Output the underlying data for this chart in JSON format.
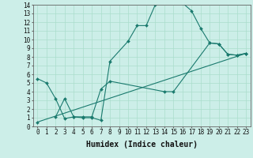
{
  "xlabel": "Humidex (Indice chaleur)",
  "bg_color": "#cceee8",
  "line_color": "#1a7a6e",
  "xlim": [
    -0.5,
    23.5
  ],
  "ylim": [
    0,
    14
  ],
  "xtick_vals": [
    0,
    1,
    2,
    3,
    4,
    5,
    6,
    7,
    8,
    9,
    10,
    11,
    12,
    13,
    14,
    15,
    16,
    17,
    18,
    19,
    20,
    21,
    22,
    23
  ],
  "ytick_vals": [
    0,
    1,
    2,
    3,
    4,
    5,
    6,
    7,
    8,
    9,
    10,
    11,
    12,
    13,
    14
  ],
  "line1_x": [
    0,
    1,
    2,
    3,
    4,
    5,
    6,
    7,
    8,
    10,
    11,
    12,
    13,
    14,
    15,
    16,
    17,
    18,
    19,
    20,
    21,
    22,
    23
  ],
  "line1_y": [
    5.5,
    5.0,
    3.2,
    0.9,
    1.1,
    1.0,
    1.0,
    0.7,
    7.5,
    9.8,
    11.6,
    11.6,
    14.0,
    14.3,
    14.4,
    14.2,
    13.3,
    11.3,
    9.6,
    9.5,
    8.3,
    8.2,
    8.4
  ],
  "line2_x": [
    2,
    3,
    4,
    5,
    6,
    7,
    8,
    14,
    15,
    19,
    20,
    21,
    22,
    23
  ],
  "line2_y": [
    1.1,
    3.2,
    1.1,
    1.1,
    1.1,
    4.3,
    5.2,
    4.0,
    4.0,
    9.6,
    9.5,
    8.3,
    8.2,
    8.4
  ],
  "line3_x": [
    0,
    23
  ],
  "line3_y": [
    0.5,
    8.4
  ],
  "marker_size": 2,
  "grid_color": "#aaddcc",
  "font_size_xlabel": 7,
  "font_size_ticks": 5.5
}
